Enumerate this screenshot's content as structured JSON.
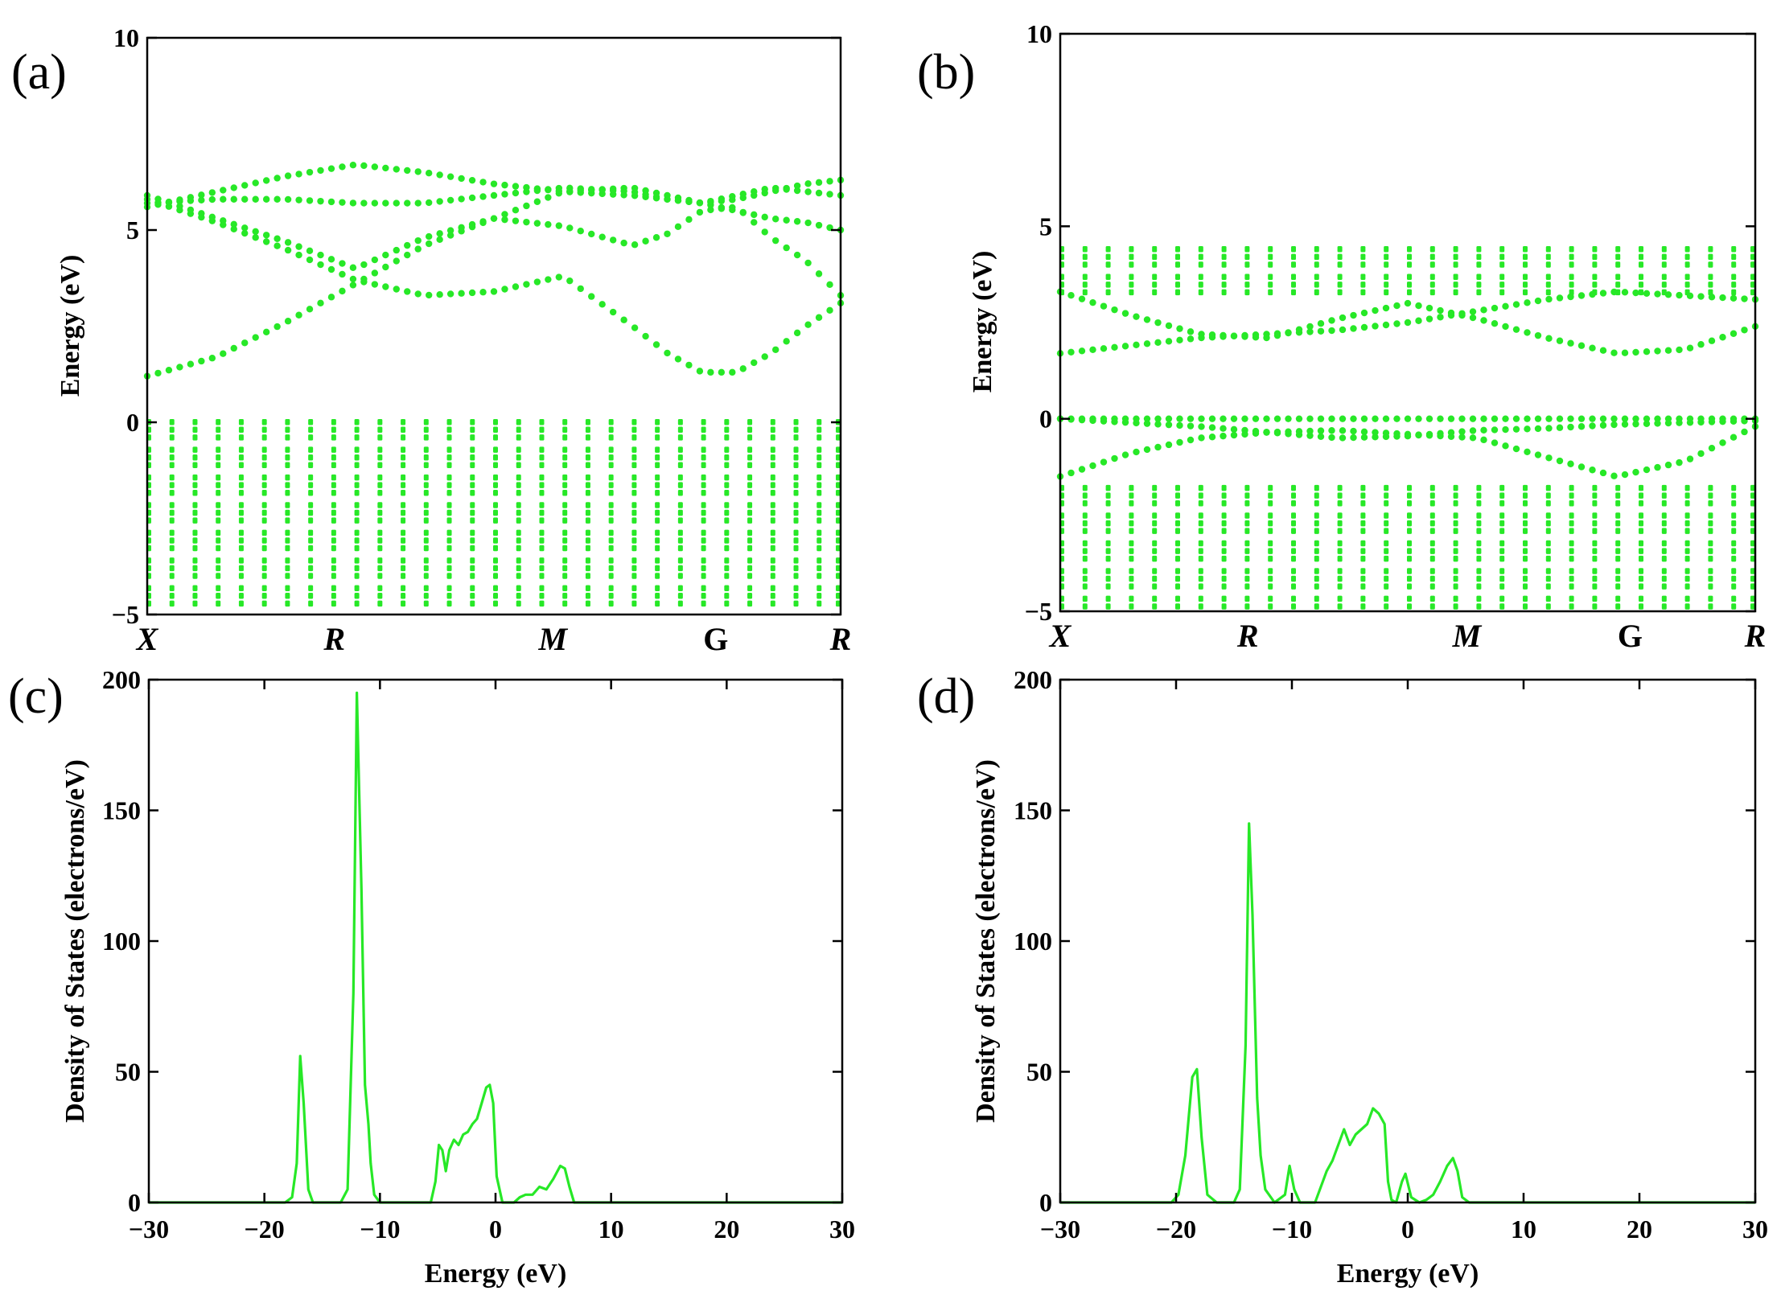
{
  "colors": {
    "series": "#27e827",
    "axis": "#000000",
    "background": "#ffffff"
  },
  "chart_data": [
    {
      "panel": "(a)",
      "type": "scatter",
      "subtype": "band-structure",
      "xlabel": "",
      "ylabel": "Energy (eV)",
      "ylim": [
        -5,
        10
      ],
      "yticks": [
        -5,
        0,
        5,
        10
      ],
      "ytick_labels": [
        "−5",
        "0",
        "5",
        "10"
      ],
      "kpoints": [
        {
          "label": "X",
          "pos": 0.0,
          "italic": true
        },
        {
          "label": "R",
          "pos": 0.27,
          "italic": true
        },
        {
          "label": "M",
          "pos": 0.585,
          "italic": true
        },
        {
          "label": "G",
          "pos": 0.82,
          "italic": false
        },
        {
          "label": "R",
          "pos": 1.0,
          "italic": true
        }
      ],
      "valence_band": {
        "top": 0.0,
        "bottom": -5.0,
        "dense_columns": 30
      },
      "conduction_bands": [
        {
          "name": "cb1",
          "x": [
            0,
            0.1,
            0.2,
            0.3,
            0.4,
            0.5,
            0.6,
            0.7,
            0.75,
            0.8,
            0.85,
            0.9,
            0.95,
            1.0
          ],
          "y": [
            1.2,
            1.7,
            2.6,
            3.6,
            4.6,
            5.3,
            6.0,
            6.1,
            5.9,
            5.7,
            5.5,
            5.3,
            5.2,
            5.0
          ]
        },
        {
          "name": "cb2",
          "x": [
            0,
            0.1,
            0.2,
            0.3,
            0.4,
            0.5,
            0.6,
            0.7,
            0.75,
            0.8,
            0.85,
            0.9,
            0.95,
            1.0
          ],
          "y": [
            5.8,
            5.2,
            4.5,
            3.7,
            3.3,
            3.4,
            3.8,
            2.5,
            1.8,
            1.3,
            1.3,
            1.8,
            2.5,
            3.1
          ]
        },
        {
          "name": "cb3",
          "x": [
            0,
            0.1,
            0.2,
            0.3,
            0.4,
            0.5,
            0.6,
            0.7,
            0.75,
            0.8,
            0.85,
            0.9,
            0.95,
            1.0
          ],
          "y": [
            5.9,
            5.3,
            4.7,
            4.0,
            4.8,
            5.3,
            5.1,
            4.6,
            4.9,
            5.5,
            5.6,
            4.8,
            4.2,
            3.3
          ]
        },
        {
          "name": "cb4",
          "x": [
            0,
            0.1,
            0.2,
            0.3,
            0.4,
            0.5,
            0.6,
            0.7,
            0.75,
            0.8,
            0.85,
            0.9,
            0.95,
            1.0
          ],
          "y": [
            5.6,
            6.0,
            6.4,
            6.7,
            6.5,
            6.2,
            6.0,
            5.9,
            5.8,
            5.7,
            5.8,
            6.0,
            6.2,
            6.3
          ]
        },
        {
          "name": "cb5",
          "x": [
            0,
            0.1,
            0.2,
            0.3,
            0.4,
            0.5,
            0.6,
            0.7,
            0.75,
            0.8,
            0.85,
            0.9,
            0.95,
            1.0
          ],
          "y": [
            5.7,
            5.8,
            5.8,
            5.7,
            5.7,
            5.9,
            6.1,
            6.0,
            5.8,
            5.7,
            5.9,
            6.1,
            6.0,
            5.9
          ]
        }
      ]
    },
    {
      "panel": "(b)",
      "type": "scatter",
      "subtype": "band-structure",
      "xlabel": "",
      "ylabel": "Energy (eV)",
      "ylim": [
        -5,
        10
      ],
      "yticks": [
        -5,
        0,
        5,
        10
      ],
      "ytick_labels": [
        "−5",
        "0",
        "5",
        "10"
      ],
      "kpoints": [
        {
          "label": "X",
          "pos": 0.0,
          "italic": true
        },
        {
          "label": "R",
          "pos": 0.27,
          "italic": true
        },
        {
          "label": "M",
          "pos": 0.585,
          "italic": true
        },
        {
          "label": "G",
          "pos": 0.82,
          "italic": false
        },
        {
          "label": "R",
          "pos": 1.0,
          "italic": true
        }
      ],
      "valence_band": {
        "top": -1.8,
        "bottom": -5.0,
        "dense_columns": 30
      },
      "conduction_block": {
        "top": 4.4,
        "bottom": 3.2,
        "dense_columns": 30
      },
      "conduction_bands": [
        {
          "name": "cb1",
          "x": [
            0,
            0.1,
            0.2,
            0.3,
            0.4,
            0.5,
            0.6,
            0.7,
            0.8,
            0.9,
            1.0
          ],
          "y": [
            1.7,
            1.9,
            2.1,
            2.2,
            2.3,
            2.5,
            2.8,
            3.1,
            3.3,
            3.2,
            3.1
          ]
        },
        {
          "name": "cb2",
          "x": [
            0,
            0.1,
            0.2,
            0.3,
            0.4,
            0.5,
            0.6,
            0.7,
            0.8,
            0.9,
            1.0
          ],
          "y": [
            3.3,
            2.7,
            2.2,
            2.1,
            2.6,
            3.0,
            2.6,
            2.1,
            1.7,
            1.8,
            2.4
          ]
        }
      ],
      "midgap_bands": [
        {
          "name": "vb1",
          "x": [
            0,
            0.1,
            0.2,
            0.3,
            0.4,
            0.5,
            0.6,
            0.7,
            0.8,
            0.9,
            1.0
          ],
          "y": [
            0.0,
            0.0,
            0.0,
            0.0,
            0.0,
            0.0,
            0.0,
            0.0,
            0.0,
            0.0,
            0.0
          ]
        },
        {
          "name": "vb2",
          "x": [
            0,
            0.1,
            0.2,
            0.3,
            0.4,
            0.5,
            0.6,
            0.7,
            0.8,
            0.9,
            1.0
          ],
          "y": [
            0.0,
            -0.1,
            -0.2,
            -0.35,
            -0.5,
            -0.45,
            -0.3,
            -0.25,
            -0.15,
            -0.1,
            -0.05
          ]
        },
        {
          "name": "vb3",
          "x": [
            0,
            0.1,
            0.2,
            0.3,
            0.4,
            0.5,
            0.6,
            0.7,
            0.8,
            0.9,
            1.0
          ],
          "y": [
            -1.5,
            -0.9,
            -0.5,
            -0.35,
            -0.3,
            -0.4,
            -0.5,
            -1.0,
            -1.5,
            -1.1,
            -0.2
          ]
        }
      ]
    },
    {
      "panel": "(c)",
      "type": "line",
      "subtype": "density-of-states",
      "xlabel": "Energy (eV)",
      "ylabel": "Density of States (electrons/eV)",
      "xlim": [
        -30,
        30
      ],
      "ylim": [
        0,
        200
      ],
      "xticks": [
        -30,
        -20,
        -10,
        0,
        10,
        20,
        30
      ],
      "xtick_labels": [
        "−30",
        "−20",
        "−10",
        "0",
        "10",
        "20",
        "30"
      ],
      "yticks": [
        0,
        50,
        100,
        150,
        200
      ],
      "ytick_labels": [
        "0",
        "50",
        "100",
        "150",
        "200"
      ],
      "x": [
        -30,
        -18.2,
        -17.6,
        -17.2,
        -16.9,
        -16.6,
        -16.2,
        -15.8,
        -15.0,
        -13.4,
        -12.8,
        -12.3,
        -12.0,
        -11.6,
        -11.3,
        -11.0,
        -10.8,
        -10.5,
        -10.0,
        -9.0,
        -5.6,
        -5.2,
        -4.9,
        -4.6,
        -4.3,
        -4.0,
        -3.6,
        -3.2,
        -2.8,
        -2.4,
        -2.0,
        -1.6,
        -1.2,
        -0.8,
        -0.5,
        -0.2,
        0.1,
        0.6,
        1.6,
        2.1,
        2.6,
        3.2,
        3.8,
        4.4,
        5.0,
        5.6,
        6.0,
        6.4,
        6.8,
        7.5,
        30
      ],
      "y": [
        0,
        0,
        2,
        15,
        56,
        38,
        5,
        0,
        0,
        0,
        5,
        80,
        195,
        120,
        45,
        30,
        15,
        3,
        0,
        0,
        0,
        8,
        22,
        20,
        12,
        20,
        24,
        22,
        26,
        27,
        30,
        32,
        38,
        44,
        45,
        38,
        10,
        0,
        0,
        2,
        3,
        3,
        6,
        5,
        9,
        14,
        13,
        6,
        0,
        0,
        0
      ]
    },
    {
      "panel": "(d)",
      "type": "line",
      "subtype": "density-of-states",
      "xlabel": "Energy (eV)",
      "ylabel": "Density of States (electrons/eV)",
      "xlim": [
        -30,
        30
      ],
      "ylim": [
        0,
        200
      ],
      "xticks": [
        -30,
        -20,
        -10,
        0,
        10,
        20,
        30
      ],
      "xtick_labels": [
        "−30",
        "−20",
        "−10",
        "0",
        "10",
        "20",
        "30"
      ],
      "yticks": [
        0,
        50,
        100,
        150,
        200
      ],
      "ytick_labels": [
        "0",
        "50",
        "100",
        "150",
        "200"
      ],
      "x": [
        -30,
        -20.4,
        -19.8,
        -19.2,
        -18.6,
        -18.2,
        -17.8,
        -17.3,
        -16.5,
        -15.0,
        -14.5,
        -14.0,
        -13.7,
        -13.4,
        -13.0,
        -12.7,
        -12.3,
        -11.5,
        -10.6,
        -10.2,
        -9.8,
        -9.3,
        -8.0,
        -7.5,
        -7.0,
        -6.5,
        -6.0,
        -5.5,
        -5.0,
        -4.5,
        -4.0,
        -3.5,
        -3.0,
        -2.5,
        -2.0,
        -1.7,
        -1.4,
        -1.0,
        -0.5,
        -0.2,
        0.3,
        1.0,
        1.6,
        2.2,
        2.8,
        3.4,
        3.9,
        4.3,
        4.7,
        5.3,
        30
      ],
      "y": [
        0,
        0,
        3,
        18,
        48,
        51,
        25,
        3,
        0,
        0,
        5,
        60,
        145,
        110,
        40,
        18,
        5,
        0,
        3,
        14,
        5,
        0,
        0,
        6,
        12,
        16,
        22,
        28,
        22,
        26,
        28,
        30,
        36,
        34,
        30,
        8,
        1,
        0,
        8,
        11,
        2,
        0,
        1,
        3,
        8,
        14,
        17,
        12,
        2,
        0,
        0
      ]
    }
  ]
}
